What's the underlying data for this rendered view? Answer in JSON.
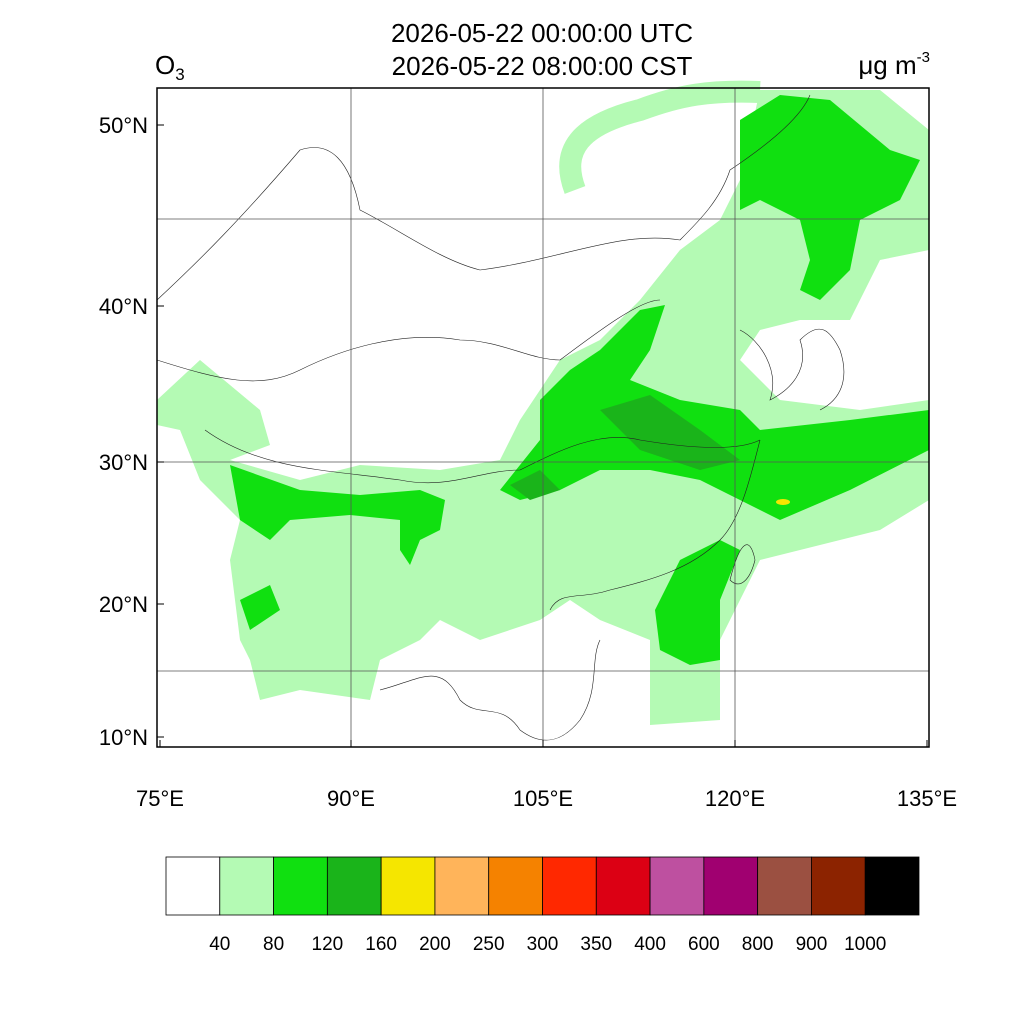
{
  "header": {
    "title_utc": "2026-05-22 00:00:00 UTC",
    "title_cst": "2026-05-22 08:00:00 CST",
    "variable": "O",
    "variable_sub": "3",
    "units": "μg m",
    "units_sup": "-3"
  },
  "map": {
    "lon_ticks": [
      "75°E",
      "90°E",
      "105°E",
      "120°E",
      "135°E"
    ],
    "lat_ticks": [
      "50°N",
      "40°N",
      "30°N",
      "20°N",
      "10°N"
    ]
  },
  "colorbar": {
    "levels": [
      40,
      80,
      120,
      160,
      200,
      250,
      300,
      350,
      400,
      600,
      800,
      900,
      1000
    ],
    "colors": [
      "#ffffff",
      "#b4fab4",
      "#10e010",
      "#1ab41a",
      "#f5e600",
      "#ffb45a",
      "#f58200",
      "#ff2800",
      "#dc0014",
      "#be50a0",
      "#a00070",
      "#9b5041",
      "#8c2300",
      "#000000"
    ]
  }
}
